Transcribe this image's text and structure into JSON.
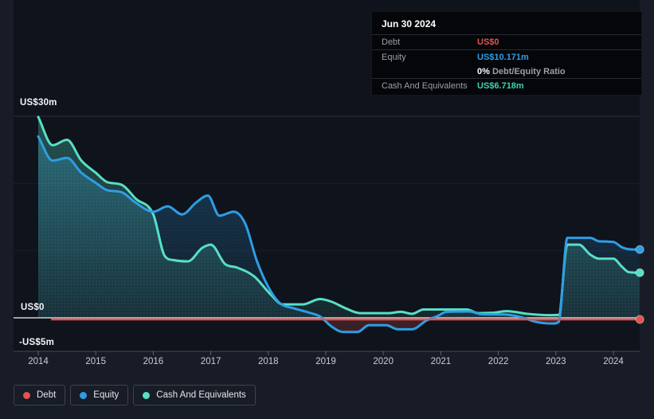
{
  "colors": {
    "background": "#171c27",
    "panel": "#0e131c",
    "debt": "#e4534f",
    "equity": "#2f9de4",
    "cash": "#57dfc5",
    "zero_line": "#e6eaef",
    "negative_equity_fill": "rgba(226,80,80,0.22)",
    "tooltip_bg": "#04060a"
  },
  "tooltip": {
    "date": "Jun 30 2024",
    "debt_label": "Debt",
    "debt_value": "US$0",
    "equity_label": "Equity",
    "equity_value": "US$10.171m",
    "ratio_value": "0%",
    "ratio_label": "Debt/Equity Ratio",
    "cash_label": "Cash And Equivalents",
    "cash_value": "US$6.718m"
  },
  "legend": {
    "items": [
      {
        "id": "debt",
        "label": "Debt",
        "color": "#e4534f"
      },
      {
        "id": "equity",
        "label": "Equity",
        "color": "#2f9de4"
      },
      {
        "id": "cash",
        "label": "Cash And Equivalents",
        "color": "#57dfc5"
      }
    ]
  },
  "chart": {
    "y_axis_labels": [
      "US$30m",
      "US$0",
      "-US$5m"
    ],
    "x_axis_labels": [
      "2014",
      "2015",
      "2016",
      "2017",
      "2018",
      "2019",
      "2020",
      "2021",
      "2022",
      "2023",
      "2024"
    ]
  },
  "chart_data": {
    "type": "area",
    "units": "US$ millions",
    "x_axis": {
      "tick_years": [
        2014,
        2015,
        2016,
        2017,
        2018,
        2019,
        2020,
        2021,
        2022,
        2023,
        2024
      ]
    },
    "y_axis": {
      "range": [
        -5,
        30
      ],
      "labeled_values": [
        30,
        0,
        -5
      ],
      "gridline_values": [
        30,
        20,
        10,
        0,
        -5
      ]
    },
    "highlight_point": {
      "date": "Jun 30 2024",
      "debt": 0,
      "equity": 10.171,
      "cash": 6.718,
      "debt_equity_ratio_pct": 0
    },
    "series": [
      {
        "name": "Debt",
        "color": "#e4534f",
        "points": [
          [
            2014.24,
            0
          ],
          [
            2024.46,
            0
          ]
        ]
      },
      {
        "name": "Equity",
        "color": "#2f9de4",
        "points": [
          [
            2014.0,
            27.0
          ],
          [
            2014.25,
            23.4
          ],
          [
            2014.5,
            23.8
          ],
          [
            2014.75,
            21.6
          ],
          [
            2015.0,
            20.1
          ],
          [
            2015.2,
            19.0
          ],
          [
            2015.45,
            18.7
          ],
          [
            2015.7,
            17.1
          ],
          [
            2016.0,
            15.8
          ],
          [
            2016.25,
            16.6
          ],
          [
            2016.5,
            15.4
          ],
          [
            2016.75,
            17.2
          ],
          [
            2016.95,
            18.2
          ],
          [
            2017.15,
            15.2
          ],
          [
            2017.4,
            15.8
          ],
          [
            2017.6,
            14.0
          ],
          [
            2017.8,
            8.5
          ],
          [
            2018.0,
            4.6
          ],
          [
            2018.2,
            2.2
          ],
          [
            2018.45,
            1.4
          ],
          [
            2018.7,
            0.8
          ],
          [
            2018.9,
            0.2
          ],
          [
            2019.1,
            -1.3
          ],
          [
            2019.3,
            -2.1
          ],
          [
            2019.55,
            -2.1
          ],
          [
            2019.75,
            -1.1
          ],
          [
            2020.05,
            -1.1
          ],
          [
            2020.25,
            -1.7
          ],
          [
            2020.5,
            -1.7
          ],
          [
            2020.75,
            -0.4
          ],
          [
            2020.95,
            0.3
          ],
          [
            2021.1,
            0.9
          ],
          [
            2021.5,
            0.95
          ],
          [
            2021.7,
            0.55
          ],
          [
            2022.1,
            0.5
          ],
          [
            2022.4,
            0.1
          ],
          [
            2022.65,
            -0.6
          ],
          [
            2022.95,
            -0.85
          ],
          [
            2023.05,
            -0.6
          ],
          [
            2023.2,
            11.9
          ],
          [
            2023.6,
            11.9
          ],
          [
            2023.75,
            11.4
          ],
          [
            2024.0,
            11.3
          ],
          [
            2024.15,
            10.5
          ],
          [
            2024.3,
            10.2
          ],
          [
            2024.46,
            10.171
          ]
        ]
      },
      {
        "name": "Cash And Equivalents",
        "color": "#57dfc5",
        "points": [
          [
            2014.0,
            29.9
          ],
          [
            2014.25,
            25.7
          ],
          [
            2014.5,
            26.5
          ],
          [
            2014.75,
            23.4
          ],
          [
            2015.0,
            21.6
          ],
          [
            2015.2,
            20.2
          ],
          [
            2015.45,
            19.8
          ],
          [
            2015.7,
            17.7
          ],
          [
            2016.0,
            15.4
          ],
          [
            2016.2,
            9.2
          ],
          [
            2016.35,
            8.6
          ],
          [
            2016.6,
            8.4
          ],
          [
            2016.85,
            10.4
          ],
          [
            2017.0,
            10.9
          ],
          [
            2017.25,
            8.0
          ],
          [
            2017.45,
            7.5
          ],
          [
            2017.75,
            6.2
          ],
          [
            2018.05,
            3.4
          ],
          [
            2018.25,
            2.0
          ],
          [
            2018.6,
            2.0
          ],
          [
            2018.9,
            2.8
          ],
          [
            2019.1,
            2.4
          ],
          [
            2019.35,
            1.4
          ],
          [
            2019.6,
            0.7
          ],
          [
            2020.1,
            0.7
          ],
          [
            2020.3,
            0.9
          ],
          [
            2020.5,
            0.6
          ],
          [
            2020.7,
            1.25
          ],
          [
            2021.45,
            1.25
          ],
          [
            2021.65,
            0.7
          ],
          [
            2021.9,
            0.75
          ],
          [
            2022.15,
            1.0
          ],
          [
            2022.5,
            0.6
          ],
          [
            2022.9,
            0.4
          ],
          [
            2023.05,
            0.45
          ],
          [
            2023.2,
            10.9
          ],
          [
            2023.4,
            10.9
          ],
          [
            2023.6,
            9.4
          ],
          [
            2023.75,
            8.8
          ],
          [
            2024.0,
            8.8
          ],
          [
            2024.15,
            7.6
          ],
          [
            2024.27,
            6.8
          ],
          [
            2024.46,
            6.718
          ]
        ]
      }
    ]
  }
}
